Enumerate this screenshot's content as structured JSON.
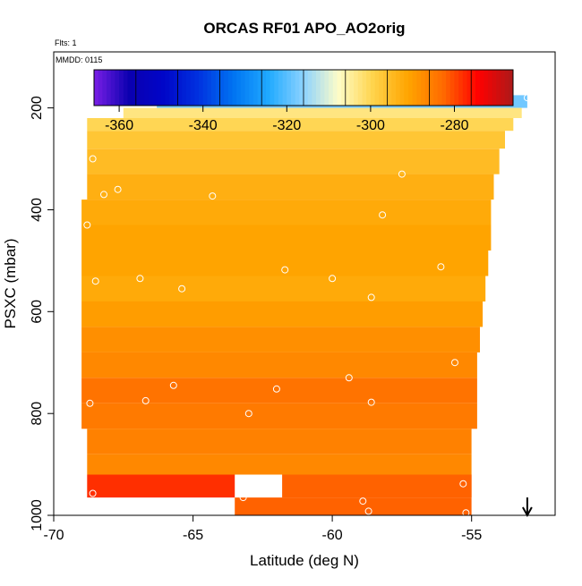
{
  "chart_data": {
    "type": "heatmap",
    "title": "ORCAS RF01 APO_AO2orig",
    "subtitle_flights": "Flts: 1",
    "mmdd_label": "MMDD: 0115",
    "xlabel": "Latitude (deg N)",
    "ylabel": "PSXC (mbar)",
    "xlim": [
      -70,
      -52
    ],
    "ylim": [
      1000,
      90
    ],
    "x_ticks": [
      {
        "value": -70,
        "label": "-70"
      },
      {
        "value": -65,
        "label": "-65"
      },
      {
        "value": -60,
        "label": "-60"
      },
      {
        "value": -55,
        "label": "-55"
      }
    ],
    "y_ticks": [
      {
        "value": 200,
        "label": "200"
      },
      {
        "value": 400,
        "label": "400"
      },
      {
        "value": 600,
        "label": "600"
      },
      {
        "value": 800,
        "label": "800"
      },
      {
        "value": 1000,
        "label": "1000"
      }
    ],
    "colorbar": {
      "range": [
        -366,
        -266
      ],
      "ticks": [
        {
          "value": -360,
          "label": "-360"
        },
        {
          "value": -340,
          "label": "-340"
        },
        {
          "value": -320,
          "label": "-320"
        },
        {
          "value": -300,
          "label": "-300"
        },
        {
          "value": -280,
          "label": "-280"
        }
      ],
      "colors": [
        "#7a1fe6",
        "#0b00b0",
        "#0006c8",
        "#0032e0",
        "#0074f2",
        "#20aaff",
        "#8cd2ff",
        "#fefdc8",
        "#ffd34a",
        "#ffa400",
        "#ff6a00",
        "#ff0000",
        "#ac1a1a"
      ]
    },
    "cells": [
      {
        "p0": 175,
        "p1": 200,
        "lat0": -66.3,
        "lat1": -53.0,
        "v": -318
      },
      {
        "p0": 200,
        "p1": 220,
        "lat0": -67.5,
        "lat1": -53.2,
        "v": -303
      },
      {
        "p0": 220,
        "p1": 245,
        "lat0": -68.8,
        "lat1": -53.5,
        "v": -300
      },
      {
        "p0": 245,
        "p1": 280,
        "lat0": -68.8,
        "lat1": -53.8,
        "v": -297
      },
      {
        "p0": 280,
        "p1": 330,
        "lat0": -68.8,
        "lat1": -54.0,
        "v": -295
      },
      {
        "p0": 330,
        "p1": 380,
        "lat0": -68.8,
        "lat1": -54.2,
        "v": -293
      },
      {
        "p0": 380,
        "p1": 430,
        "lat0": -69.0,
        "lat1": -54.3,
        "v": -292
      },
      {
        "p0": 430,
        "p1": 480,
        "lat0": -69.0,
        "lat1": -54.3,
        "v": -291
      },
      {
        "p0": 480,
        "p1": 530,
        "lat0": -69.0,
        "lat1": -54.4,
        "v": -291
      },
      {
        "p0": 530,
        "p1": 580,
        "lat0": -69.0,
        "lat1": -54.5,
        "v": -292
      },
      {
        "p0": 580,
        "p1": 630,
        "lat0": -69.0,
        "lat1": -54.6,
        "v": -290
      },
      {
        "p0": 630,
        "p1": 680,
        "lat0": -69.0,
        "lat1": -54.7,
        "v": -288
      },
      {
        "p0": 680,
        "p1": 730,
        "lat0": -69.0,
        "lat1": -54.8,
        "v": -287
      },
      {
        "p0": 730,
        "p1": 780,
        "lat0": -69.0,
        "lat1": -54.8,
        "v": -284
      },
      {
        "p0": 780,
        "p1": 830,
        "lat0": -69.0,
        "lat1": -54.8,
        "v": -285
      },
      {
        "p0": 830,
        "p1": 880,
        "lat0": -68.8,
        "lat1": -55.0,
        "v": -286
      },
      {
        "p0": 880,
        "p1": 920,
        "lat0": -68.8,
        "lat1": -55.0,
        "v": -287
      },
      {
        "p0": 920,
        "p1": 965,
        "lat0": -68.8,
        "lat1": -63.5,
        "v": -278
      },
      {
        "p0": 920,
        "p1": 965,
        "lat0": -61.8,
        "lat1": -55.0,
        "v": -282
      },
      {
        "p0": 965,
        "p1": 1000,
        "lat0": -63.5,
        "lat1": -55.0,
        "v": -282
      }
    ],
    "circles": [
      [
        -66.2,
        180
      ],
      [
        -60.5,
        180
      ],
      [
        -56.0,
        180
      ],
      [
        -53.0,
        180
      ],
      [
        -68.6,
        300
      ],
      [
        -68.2,
        370
      ],
      [
        -67.7,
        360
      ],
      [
        -64.3,
        373
      ],
      [
        -57.5,
        330
      ],
      [
        -58.2,
        410
      ],
      [
        -53.8,
        325
      ],
      [
        -54.1,
        445
      ],
      [
        -68.8,
        430
      ],
      [
        -68.5,
        540
      ],
      [
        -66.9,
        535
      ],
      [
        -65.4,
        555
      ],
      [
        -61.7,
        518
      ],
      [
        -60.0,
        535
      ],
      [
        -58.6,
        572
      ],
      [
        -56.1,
        512
      ],
      [
        -54.3,
        620
      ],
      [
        -68.7,
        780
      ],
      [
        -66.7,
        775
      ],
      [
        -65.7,
        745
      ],
      [
        -63.0,
        800
      ],
      [
        -62.0,
        752
      ],
      [
        -59.4,
        730
      ],
      [
        -58.6,
        778
      ],
      [
        -55.6,
        700
      ],
      [
        -54.5,
        840
      ],
      [
        -55.3,
        938
      ],
      [
        -68.6,
        957
      ],
      [
        -63.2,
        965
      ],
      [
        -58.9,
        972
      ],
      [
        -58.7,
        992
      ],
      [
        -55.2,
        995
      ]
    ],
    "arrow": {
      "lat": -53.0
    }
  }
}
